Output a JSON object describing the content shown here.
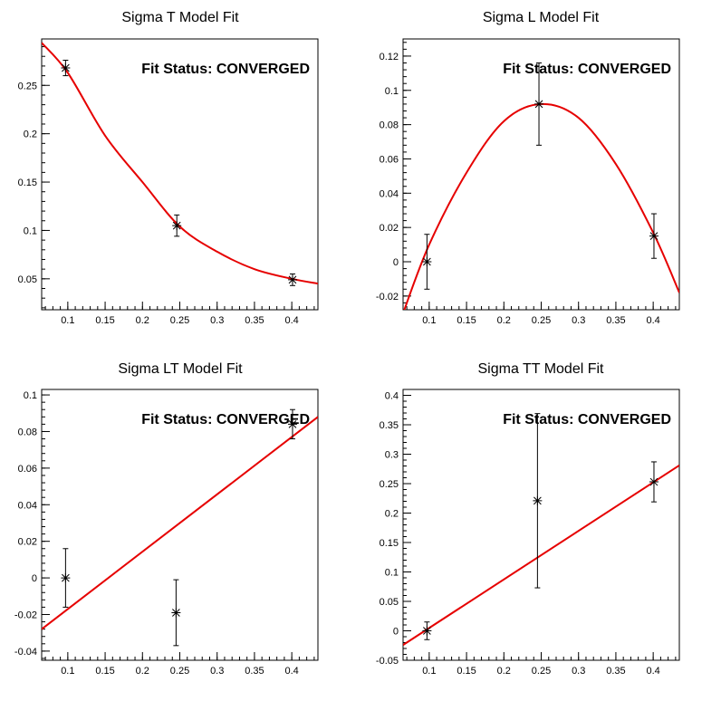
{
  "chart_data": [
    {
      "type": "scatter",
      "title": "Sigma T Model Fit",
      "annotation": "Fit Status: CONVERGED",
      "xlim": [
        0.065,
        0.435
      ],
      "ylim": [
        0.018,
        0.298
      ],
      "xticks": [
        0.1,
        0.15,
        0.2,
        0.25,
        0.3,
        0.35,
        0.4
      ],
      "xtick_labels": [
        "0.1",
        "0.15",
        "0.2",
        "0.25",
        "0.3",
        "0.35",
        "0.4"
      ],
      "yticks": [
        0.05,
        0.1,
        0.15,
        0.2,
        0.25
      ],
      "ytick_labels": [
        "0.05",
        "0.1",
        "0.15",
        "0.2",
        "0.25"
      ],
      "points": [
        {
          "x": 0.097,
          "y": 0.268,
          "err": 0.008
        },
        {
          "x": 0.246,
          "y": 0.105,
          "err": 0.011
        },
        {
          "x": 0.401,
          "y": 0.049,
          "err": 0.006
        }
      ],
      "fit": {
        "x": [
          0.065,
          0.1,
          0.15,
          0.2,
          0.25,
          0.3,
          0.35,
          0.4,
          0.435
        ],
        "y": [
          0.294,
          0.263,
          0.198,
          0.15,
          0.104,
          0.078,
          0.06,
          0.05,
          0.045
        ]
      },
      "fit_color": "#e60000"
    },
    {
      "type": "scatter",
      "title": "Sigma L Model Fit",
      "annotation": "Fit Status: CONVERGED",
      "xlim": [
        0.065,
        0.435
      ],
      "ylim": [
        -0.028,
        0.13
      ],
      "xticks": [
        0.1,
        0.15,
        0.2,
        0.25,
        0.3,
        0.35,
        0.4
      ],
      "xtick_labels": [
        "0.1",
        "0.15",
        "0.2",
        "0.25",
        "0.3",
        "0.35",
        "0.4"
      ],
      "yticks": [
        -0.02,
        0,
        0.02,
        0.04,
        0.06,
        0.08,
        0.1,
        0.12
      ],
      "ytick_labels": [
        "-0.02",
        "0",
        "0.02",
        "0.04",
        "0.06",
        "0.08",
        "0.1",
        "0.12"
      ],
      "points": [
        {
          "x": 0.097,
          "y": 0.0,
          "err": 0.016
        },
        {
          "x": 0.247,
          "y": 0.092,
          "err": 0.024
        },
        {
          "x": 0.401,
          "y": 0.015,
          "err": 0.013
        }
      ],
      "fit": {
        "x": [
          0.065,
          0.1,
          0.15,
          0.2,
          0.25,
          0.3,
          0.35,
          0.4,
          0.435
        ],
        "y": [
          -0.03,
          0.01,
          0.052,
          0.082,
          0.092,
          0.084,
          0.057,
          0.017,
          -0.018
        ]
      },
      "fit_color": "#e60000"
    },
    {
      "type": "scatter",
      "title": "Sigma LT Model Fit",
      "annotation": "Fit Status: CONVERGED",
      "xlim": [
        0.065,
        0.435
      ],
      "ylim": [
        -0.045,
        0.103
      ],
      "xticks": [
        0.1,
        0.15,
        0.2,
        0.25,
        0.3,
        0.35,
        0.4
      ],
      "xtick_labels": [
        "0.1",
        "0.15",
        "0.2",
        "0.25",
        "0.3",
        "0.35",
        "0.4"
      ],
      "yticks": [
        -0.04,
        -0.02,
        0,
        0.02,
        0.04,
        0.06,
        0.08,
        0.1
      ],
      "ytick_labels": [
        "-0.04",
        "-0.02",
        "0",
        "0.02",
        "0.04",
        "0.06",
        "0.08",
        "0.1"
      ],
      "points": [
        {
          "x": 0.097,
          "y": 0.0,
          "err": 0.016
        },
        {
          "x": 0.245,
          "y": -0.019,
          "err": 0.018
        },
        {
          "x": 0.401,
          "y": 0.084,
          "err": 0.008
        }
      ],
      "fit": {
        "x": [
          0.065,
          0.435
        ],
        "y": [
          -0.028,
          0.088
        ]
      },
      "fit_color": "#e60000"
    },
    {
      "type": "scatter",
      "title": "Sigma TT Model Fit",
      "annotation": "Fit Status: CONVERGED",
      "xlim": [
        0.065,
        0.435
      ],
      "ylim": [
        -0.05,
        0.41
      ],
      "xticks": [
        0.1,
        0.15,
        0.2,
        0.25,
        0.3,
        0.35,
        0.4
      ],
      "xtick_labels": [
        "0.1",
        "0.15",
        "0.2",
        "0.25",
        "0.3",
        "0.35",
        "0.4"
      ],
      "yticks": [
        -0.05,
        0,
        0.05,
        0.1,
        0.15,
        0.2,
        0.25,
        0.3,
        0.35,
        0.4
      ],
      "ytick_labels": [
        "-0.05",
        "0",
        "0.05",
        "0.1",
        "0.15",
        "0.2",
        "0.25",
        "0.3",
        "0.35",
        "0.4"
      ],
      "points": [
        {
          "x": 0.097,
          "y": 0.0,
          "err": 0.015
        },
        {
          "x": 0.245,
          "y": 0.221,
          "err": 0.148
        },
        {
          "x": 0.401,
          "y": 0.253,
          "err": 0.034
        }
      ],
      "fit": {
        "x": [
          0.065,
          0.435
        ],
        "y": [
          -0.024,
          0.281
        ]
      },
      "fit_color": "#e60000"
    }
  ]
}
